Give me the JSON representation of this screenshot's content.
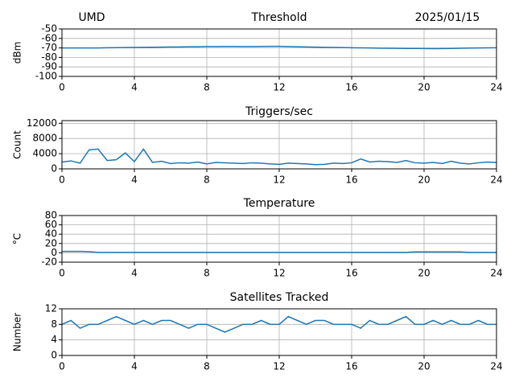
{
  "chart_data": [
    {
      "type": "line",
      "title": "Threshold",
      "annotations": [
        "UMD",
        "2025/01/15"
      ],
      "ylabel": "dBm",
      "color": "#1f77b4",
      "grid": true,
      "x": [
        0,
        0.5,
        1,
        1.5,
        2,
        2.5,
        3,
        3.5,
        4,
        4.5,
        5,
        5.5,
        6,
        6.5,
        7,
        7.5,
        8,
        8.5,
        9,
        9.5,
        10,
        10.5,
        11,
        11.5,
        12,
        12.5,
        13,
        13.5,
        14,
        14.5,
        15,
        15.5,
        16,
        16.5,
        17,
        17.5,
        18,
        18.5,
        19,
        19.5,
        20,
        20.5,
        21,
        21.5,
        22,
        22.5,
        23,
        23.5,
        24
      ],
      "values": [
        -70,
        -70,
        -70,
        -70,
        -70,
        -69.8,
        -69.7,
        -69.6,
        -69.5,
        -69.4,
        -69.3,
        -69.2,
        -69,
        -69,
        -68.8,
        -68.7,
        -68.5,
        -68.5,
        -68.4,
        -68.4,
        -68.5,
        -68.5,
        -68.4,
        -68.3,
        -68.3,
        -68.5,
        -68.8,
        -69,
        -69.2,
        -69.4,
        -69.5,
        -69.6,
        -69.8,
        -69.9,
        -70,
        -70.2,
        -70.3,
        -70.4,
        -70.5,
        -70.6,
        -70.7,
        -70.8,
        -70.7,
        -70.5,
        -70.3,
        -70.1,
        -70,
        -69.9,
        -69.8
      ],
      "xlim": [
        0,
        24
      ],
      "xticks": [
        0,
        4,
        8,
        12,
        16,
        20,
        24
      ],
      "ylim": [
        -100,
        -50
      ],
      "yticks": [
        -50,
        -60,
        -70,
        -80,
        -90,
        -100
      ]
    },
    {
      "type": "line",
      "title": "Triggers/sec",
      "ylabel": "Count",
      "color": "#1f77b4",
      "grid": true,
      "x": [
        0,
        0.5,
        1,
        1.5,
        2,
        2.5,
        3,
        3.5,
        4,
        4.5,
        5,
        5.5,
        6,
        6.5,
        7,
        7.5,
        8,
        8.5,
        9,
        9.5,
        10,
        10.5,
        11,
        11.5,
        12,
        12.5,
        13,
        13.5,
        14,
        14.5,
        15,
        15.5,
        16,
        16.5,
        17,
        17.5,
        18,
        18.5,
        19,
        19.5,
        20,
        20.5,
        21,
        21.5,
        22,
        22.5,
        23,
        23.5,
        24
      ],
      "values": [
        1800,
        2100,
        1500,
        5000,
        5200,
        2200,
        2400,
        4200,
        1900,
        5200,
        1700,
        2000,
        1400,
        1600,
        1500,
        1800,
        1300,
        1700,
        1600,
        1500,
        1400,
        1600,
        1500,
        1300,
        1200,
        1500,
        1400,
        1300,
        1100,
        1200,
        1500,
        1400,
        1600,
        2600,
        1800,
        2000,
        1900,
        1700,
        2200,
        1600,
        1500,
        1700,
        1400,
        2000,
        1500,
        1300,
        1600,
        1800,
        1700
      ],
      "xlim": [
        0,
        24
      ],
      "xticks": [
        0,
        4,
        8,
        12,
        16,
        20,
        24
      ],
      "ylim": [
        0,
        12700
      ],
      "yticks": [
        0,
        4000,
        8000,
        12000
      ]
    },
    {
      "type": "line",
      "title": "Temperature",
      "ylabel": "°C",
      "color": "#1f77b4",
      "grid": true,
      "x": [
        0,
        0.5,
        1,
        1.5,
        2,
        2.5,
        3,
        3.5,
        4,
        4.5,
        5,
        5.5,
        6,
        6.5,
        7,
        7.5,
        8,
        8.5,
        9,
        9.5,
        10,
        10.5,
        11,
        11.5,
        12,
        12.5,
        13,
        13.5,
        14,
        14.5,
        15,
        15.5,
        16,
        16.5,
        17,
        17.5,
        18,
        18.5,
        19,
        19.5,
        20,
        20.5,
        21,
        21.5,
        22,
        22.5,
        23,
        23.5,
        24
      ],
      "values": [
        3,
        3,
        3,
        2.5,
        1,
        1,
        1,
        1,
        1,
        1,
        1,
        1,
        1,
        1,
        1,
        1,
        1,
        1,
        1,
        1,
        1,
        1,
        1,
        1,
        1,
        1,
        1,
        1,
        1,
        1,
        1,
        1,
        1,
        1,
        1,
        1,
        1,
        1,
        1,
        2,
        2,
        2,
        2,
        2,
        2,
        1,
        1,
        1,
        1
      ],
      "xlim": [
        0,
        24
      ],
      "xticks": [
        0,
        4,
        8,
        12,
        16,
        20,
        24
      ],
      "ylim": [
        -20,
        80
      ],
      "yticks": [
        -20,
        0,
        20,
        40,
        60,
        80
      ]
    },
    {
      "type": "line",
      "title": "Satellites Tracked",
      "ylabel": "Number",
      "color": "#1f77b4",
      "grid": true,
      "x": [
        0,
        0.5,
        1,
        1.5,
        2,
        2.5,
        3,
        3.5,
        4,
        4.5,
        5,
        5.5,
        6,
        6.5,
        7,
        7.5,
        8,
        8.5,
        9,
        9.5,
        10,
        10.5,
        11,
        11.5,
        12,
        12.5,
        13,
        13.5,
        14,
        14.5,
        15,
        15.5,
        16,
        16.5,
        17,
        17.5,
        18,
        18.5,
        19,
        19.5,
        20,
        20.5,
        21,
        21.5,
        22,
        22.5,
        23,
        23.5,
        24
      ],
      "values": [
        8,
        9,
        7,
        8,
        8,
        9,
        10,
        9,
        8,
        9,
        8,
        9,
        9,
        8,
        7,
        8,
        8,
        7,
        6,
        7,
        8,
        8,
        9,
        8,
        8,
        10,
        9,
        8,
        9,
        9,
        8,
        8,
        8,
        7,
        9,
        8,
        8,
        9,
        10,
        8,
        8,
        9,
        8,
        9,
        8,
        8,
        9,
        8,
        8
      ],
      "xlim": [
        0,
        24
      ],
      "xticks": [
        0,
        4,
        8,
        12,
        16,
        20,
        24
      ],
      "ylim": [
        0,
        12
      ],
      "yticks": [
        0,
        4,
        8,
        12
      ]
    }
  ]
}
